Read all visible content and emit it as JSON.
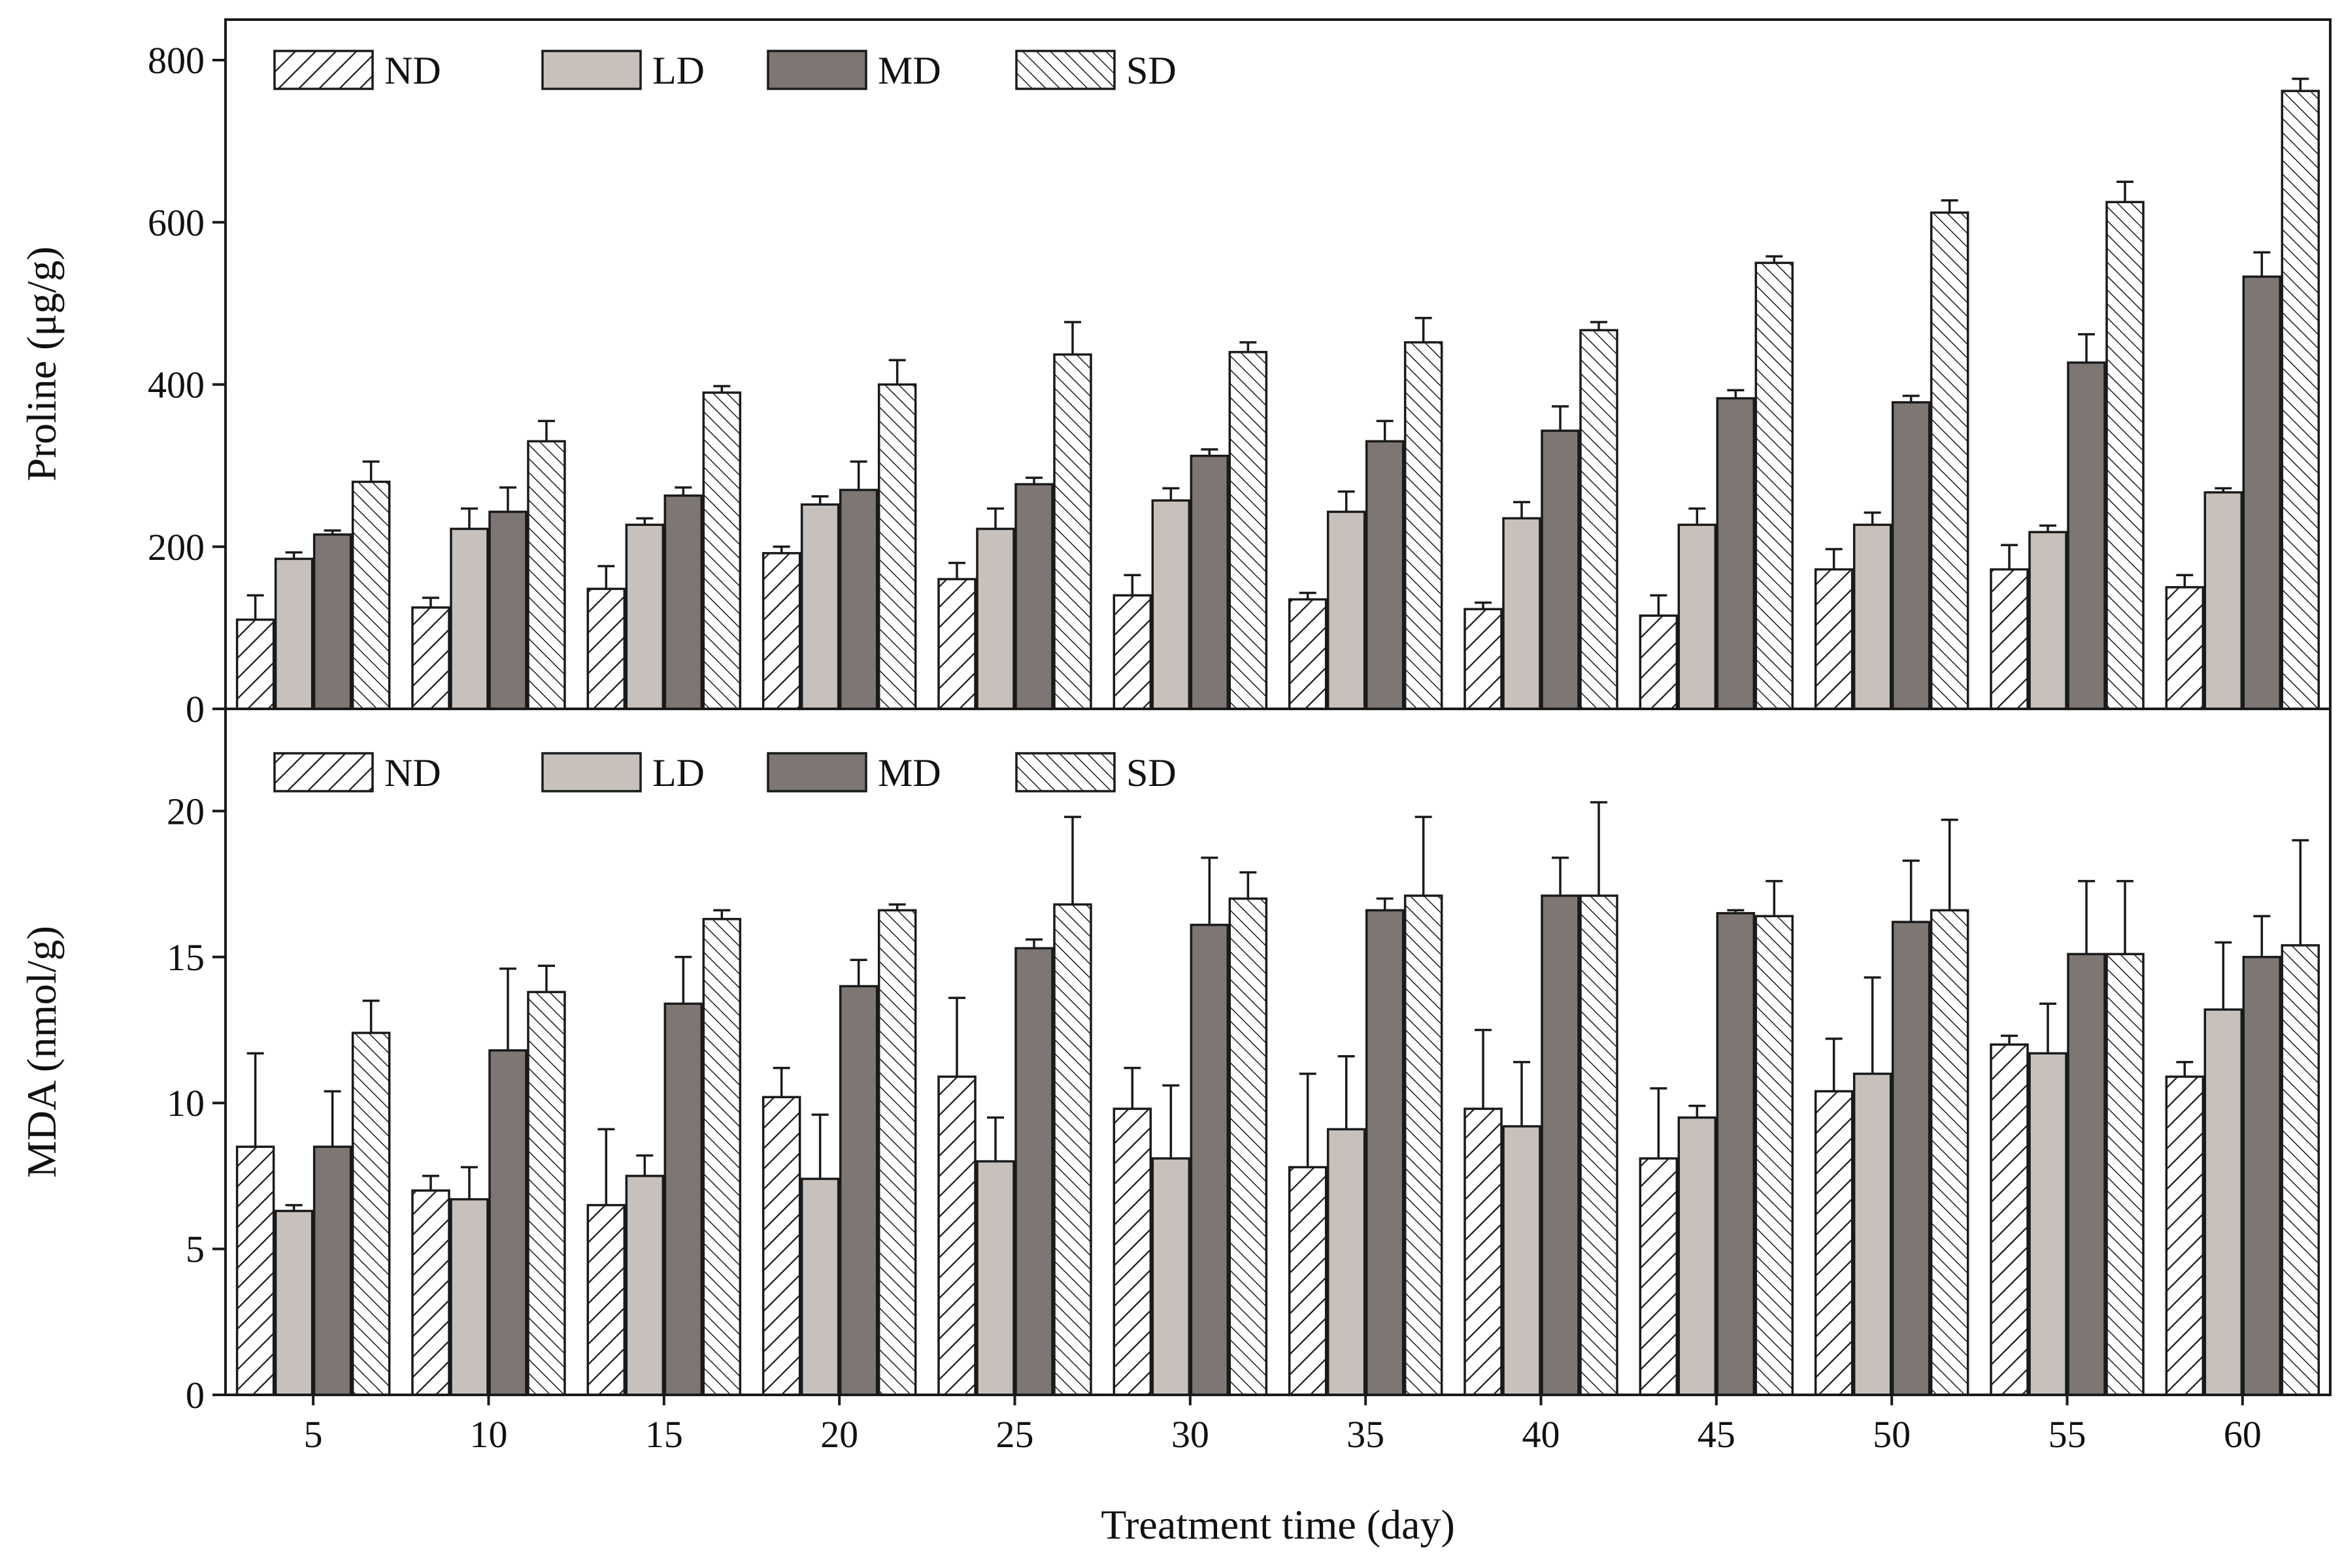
{
  "styles": {
    "outline": "#1a1a1a",
    "ld_fill": "#c8c1bb",
    "md_fill": "#7d7672",
    "background": "#ffffff"
  },
  "chart_data": [
    {
      "type": "bar",
      "panel": "top",
      "title": "",
      "ylabel": "Proline (μg/g)",
      "xlabel": "Treatment time (day)",
      "categories": [
        5,
        10,
        15,
        20,
        25,
        30,
        35,
        40,
        45,
        50,
        55,
        60
      ],
      "ylim": [
        0,
        850
      ],
      "yticks": [
        0,
        200,
        400,
        600,
        800
      ],
      "grid": false,
      "legend_position": "top-left-inside",
      "series": [
        {
          "name": "ND",
          "style": "hatch-forward-diagonal",
          "values": [
            110,
            125,
            148,
            192,
            160,
            140,
            135,
            123,
            115,
            172,
            172,
            150
          ],
          "errors": [
            30,
            12,
            28,
            8,
            20,
            25,
            8,
            8,
            25,
            25,
            30,
            15
          ]
        },
        {
          "name": "LD",
          "style": "solid-light-gray",
          "values": [
            185,
            222,
            227,
            252,
            222,
            257,
            243,
            235,
            227,
            227,
            218,
            267
          ],
          "errors": [
            8,
            25,
            8,
            10,
            25,
            15,
            25,
            20,
            20,
            15,
            8,
            5
          ]
        },
        {
          "name": "MD",
          "style": "solid-dark-gray",
          "values": [
            215,
            243,
            263,
            270,
            277,
            312,
            330,
            343,
            383,
            378,
            427,
            533
          ],
          "errors": [
            5,
            30,
            10,
            35,
            8,
            8,
            25,
            30,
            10,
            8,
            35,
            30
          ]
        },
        {
          "name": "SD",
          "style": "hatch-back-diagonal",
          "values": [
            280,
            330,
            390,
            400,
            437,
            440,
            452,
            467,
            550,
            612,
            625,
            762
          ],
          "errors": [
            25,
            25,
            8,
            30,
            40,
            12,
            30,
            10,
            8,
            15,
            25,
            15
          ]
        }
      ]
    },
    {
      "type": "bar",
      "panel": "bottom",
      "title": "",
      "ylabel": "MDA (nmol/g)",
      "xlabel": "Treatment time (day)",
      "categories": [
        5,
        10,
        15,
        20,
        25,
        30,
        35,
        40,
        45,
        50,
        55,
        60
      ],
      "ylim": [
        0,
        23.5
      ],
      "yticks": [
        0,
        5,
        10,
        15,
        20
      ],
      "grid": false,
      "legend_position": "top-left-inside",
      "series": [
        {
          "name": "ND",
          "style": "hatch-forward-diagonal",
          "values": [
            8.5,
            7.0,
            6.5,
            10.2,
            10.9,
            9.8,
            7.8,
            9.8,
            8.1,
            10.4,
            12.0,
            10.9
          ],
          "errors": [
            3.2,
            0.5,
            2.6,
            1.0,
            2.7,
            1.4,
            3.2,
            2.7,
            2.4,
            1.8,
            0.3,
            0.5
          ]
        },
        {
          "name": "LD",
          "style": "solid-light-gray",
          "values": [
            6.3,
            6.7,
            7.5,
            7.4,
            8.0,
            8.1,
            9.1,
            9.2,
            9.5,
            11.0,
            11.7,
            13.2
          ],
          "errors": [
            0.2,
            1.1,
            0.7,
            2.2,
            1.5,
            2.5,
            2.5,
            2.2,
            0.4,
            3.3,
            1.7,
            2.3
          ]
        },
        {
          "name": "MD",
          "style": "solid-dark-gray",
          "values": [
            8.5,
            11.8,
            13.4,
            14.0,
            15.3,
            16.1,
            16.6,
            17.1,
            16.5,
            16.2,
            15.1,
            15.0
          ],
          "errors": [
            1.9,
            2.8,
            1.6,
            0.9,
            0.3,
            2.3,
            0.4,
            1.3,
            0.1,
            2.1,
            2.5,
            1.4
          ]
        },
        {
          "name": "SD",
          "style": "hatch-back-diagonal",
          "values": [
            12.4,
            13.8,
            16.3,
            16.6,
            16.8,
            17.0,
            17.1,
            17.1,
            16.4,
            16.6,
            15.1,
            15.4
          ],
          "errors": [
            1.1,
            0.9,
            0.3,
            0.2,
            3.0,
            0.9,
            2.7,
            3.2,
            1.2,
            3.1,
            2.5,
            3.6
          ]
        }
      ]
    }
  ]
}
